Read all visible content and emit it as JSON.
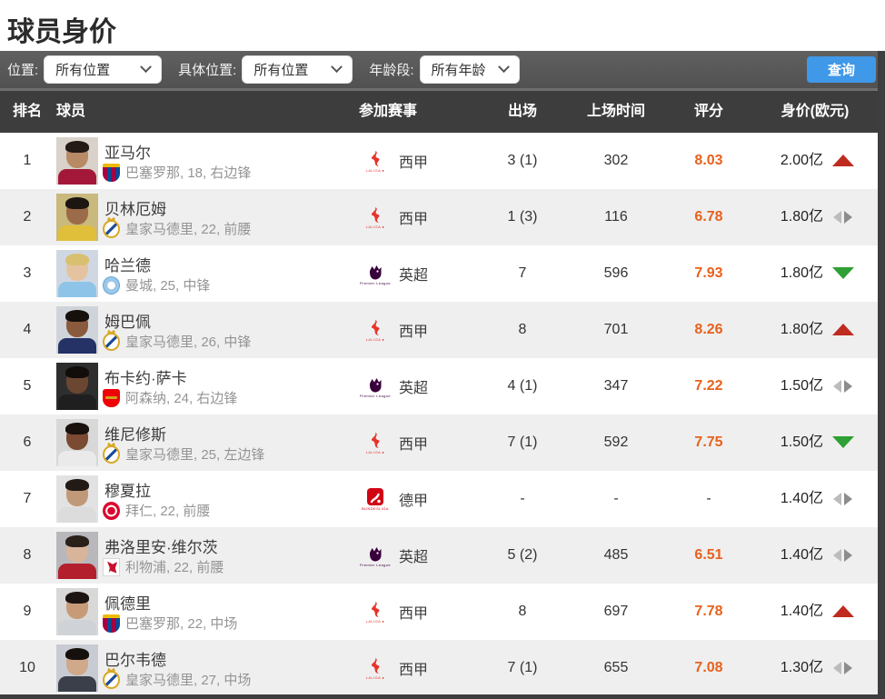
{
  "page": {
    "title": "球员身价"
  },
  "filters": {
    "position_label": "位置:",
    "position_value": "所有位置",
    "detail_position_label": "具体位置:",
    "detail_position_value": "所有位置",
    "age_label": "年龄段:",
    "age_value": "所有年龄",
    "search_button": "查询"
  },
  "table": {
    "columns": {
      "rank": "排名",
      "player": "球员",
      "league": "参加赛事",
      "appearances": "出场",
      "minutes": "上场时间",
      "rating": "评分",
      "value": "身价(欧元)"
    },
    "rows": [
      {
        "rank": "1",
        "name": "亚马尔",
        "club_info": "巴塞罗那, 18, 右边锋",
        "club": "barcelona",
        "league": "laliga",
        "league_name": "西甲",
        "appearances": "3 (1)",
        "minutes": "302",
        "rating": "8.03",
        "value": "2.00亿",
        "trend": "up",
        "photo": {
          "bg": "#d8d2ca",
          "hair": "#241a16",
          "skin": "#b98a66",
          "jersey": "#a31838"
        }
      },
      {
        "rank": "2",
        "name": "贝林厄姆",
        "club_info": "皇家马德里, 22, 前腰",
        "club": "realmadrid",
        "league": "laliga",
        "league_name": "西甲",
        "appearances": "1 (3)",
        "minutes": "116",
        "rating": "6.78",
        "value": "1.80亿",
        "trend": "flat",
        "photo": {
          "bg": "#c9b97c",
          "hair": "#1d1512",
          "skin": "#9c6b4a",
          "jersey": "#e0c03a"
        }
      },
      {
        "rank": "3",
        "name": "哈兰德",
        "club_info": "曼城, 25, 中锋",
        "club": "mancity",
        "league": "epl",
        "league_name": "英超",
        "appearances": "7",
        "minutes": "596",
        "rating": "7.93",
        "value": "1.80亿",
        "trend": "down",
        "photo": {
          "bg": "#cfd8e2",
          "hair": "#d8c070",
          "skin": "#e5c3a0",
          "jersey": "#8ec4e8"
        }
      },
      {
        "rank": "4",
        "name": "姆巴佩",
        "club_info": "皇家马德里, 26, 中锋",
        "club": "realmadrid",
        "league": "laliga",
        "league_name": "西甲",
        "appearances": "8",
        "minutes": "701",
        "rating": "8.26",
        "value": "1.80亿",
        "trend": "up",
        "photo": {
          "bg": "#cfd4da",
          "hair": "#16100d",
          "skin": "#8a5a3c",
          "jersey": "#243266"
        }
      },
      {
        "rank": "5",
        "name": "布卡约·萨卡",
        "club_info": "阿森纳, 24, 右边锋",
        "club": "arsenal",
        "league": "epl",
        "league_name": "英超",
        "appearances": "4 (1)",
        "minutes": "347",
        "rating": "7.22",
        "value": "1.50亿",
        "trend": "flat",
        "photo": {
          "bg": "#2e2e2e",
          "hair": "#120d0b",
          "skin": "#6b4630",
          "jersey": "#1f1f1f"
        }
      },
      {
        "rank": "6",
        "name": "维尼修斯",
        "club_info": "皇家马德里, 25, 左边锋",
        "club": "realmadrid",
        "league": "laliga",
        "league_name": "西甲",
        "appearances": "7 (1)",
        "minutes": "592",
        "rating": "7.75",
        "value": "1.50亿",
        "trend": "down",
        "photo": {
          "bg": "#d8d8d8",
          "hair": "#18110d",
          "skin": "#7a4a32",
          "jersey": "#eaeaea"
        }
      },
      {
        "rank": "7",
        "name": "穆夏拉",
        "club_info": "拜仁, 22, 前腰",
        "club": "bayern",
        "league": "bundesliga",
        "league_name": "德甲",
        "appearances": "-",
        "minutes": "-",
        "rating": "-",
        "value": "1.40亿",
        "trend": "flat",
        "photo": {
          "bg": "#e2e2e2",
          "hair": "#221a14",
          "skin": "#c09a78",
          "jersey": "#dcdcdc"
        }
      },
      {
        "rank": "8",
        "name": "弗洛里安·维尔茨",
        "club_info": "利物浦, 22, 前腰",
        "club": "liverpool",
        "league": "epl",
        "league_name": "英超",
        "appearances": "5 (2)",
        "minutes": "485",
        "rating": "6.51",
        "value": "1.40亿",
        "trend": "flat",
        "photo": {
          "bg": "#b8b8bc",
          "hair": "#2a211b",
          "skin": "#d8b59a",
          "jersey": "#b31f2c"
        }
      },
      {
        "rank": "9",
        "name": "佩德里",
        "club_info": "巴塞罗那, 22, 中场",
        "club": "barcelona",
        "league": "laliga",
        "league_name": "西甲",
        "appearances": "8",
        "minutes": "697",
        "rating": "7.78",
        "value": "1.40亿",
        "trend": "up",
        "photo": {
          "bg": "#d8d8d8",
          "hair": "#1c1410",
          "skin": "#c89b78",
          "jersey": "#cfd3d8"
        }
      },
      {
        "rank": "10",
        "name": "巴尔韦德",
        "club_info": "皇家马德里, 27, 中场",
        "club": "realmadrid",
        "league": "laliga",
        "league_name": "西甲",
        "appearances": "7 (1)",
        "minutes": "655",
        "rating": "7.08",
        "value": "1.30亿",
        "trend": "flat",
        "photo": {
          "bg": "#c8ccd2",
          "hair": "#15100c",
          "skin": "#d0a88a",
          "jersey": "#3a3f4a"
        }
      }
    ]
  },
  "league_captions": {
    "laliga": "LALIGA ●",
    "epl": "Premier League",
    "bundesliga": "BUNDESLIGA"
  },
  "colors": {
    "accent_blue": "#3f98e8",
    "rating_orange": "#e8611c",
    "trend_up_red": "#bf2b1f",
    "trend_down_green": "#2fa033",
    "trend_flat_gray": "#8d8d8d",
    "filter_bar_bg": "#585858",
    "table_header_bg": "#3d3d3d",
    "alt_row_bg": "#efefef"
  }
}
